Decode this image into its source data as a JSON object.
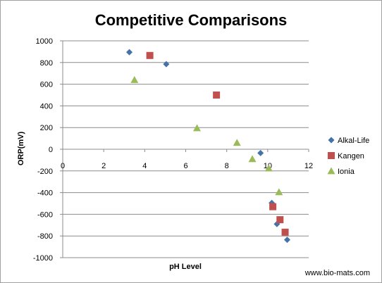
{
  "chart_data": {
    "type": "scatter",
    "title": "Competitive Comparisons",
    "xlabel": "pH Level",
    "ylabel": "ORP(mV)",
    "xlim": [
      0,
      12
    ],
    "ylim": [
      -1000,
      1000
    ],
    "x_ticks": [
      0,
      2,
      4,
      6,
      8,
      10,
      12
    ],
    "y_ticks": [
      -1000,
      -800,
      -600,
      -400,
      -200,
      0,
      200,
      400,
      600,
      800,
      1000
    ],
    "x_tick_labels": [
      "0",
      "2",
      "4",
      "6",
      "8",
      "10",
      "12"
    ],
    "y_tick_labels": [
      "-1000",
      "-800",
      "-600",
      "-400",
      "-200",
      "0",
      "200",
      "400",
      "600",
      "800",
      "1000"
    ],
    "grid": "horizontal",
    "legend_position": "right",
    "series": [
      {
        "name": "Alkal-Life",
        "marker": "diamond",
        "color": "#4572A7",
        "points": [
          [
            3.25,
            895
          ],
          [
            5.05,
            785
          ],
          [
            9.65,
            -35
          ],
          [
            10.2,
            -495
          ],
          [
            10.45,
            -690
          ],
          [
            10.95,
            -835
          ]
        ]
      },
      {
        "name": "Kangen",
        "marker": "square",
        "color": "#C0504D",
        "points": [
          [
            4.25,
            865
          ],
          [
            7.5,
            500
          ],
          [
            10.25,
            -530
          ],
          [
            10.6,
            -650
          ],
          [
            10.85,
            -765
          ]
        ]
      },
      {
        "name": "Ionia",
        "marker": "triangle",
        "color": "#9BBB59",
        "points": [
          [
            3.5,
            640
          ],
          [
            6.55,
            195
          ],
          [
            8.5,
            60
          ],
          [
            9.25,
            -90
          ],
          [
            10.05,
            -175
          ],
          [
            10.55,
            -395
          ]
        ]
      }
    ]
  },
  "source_text": "www.bio-mats.com"
}
